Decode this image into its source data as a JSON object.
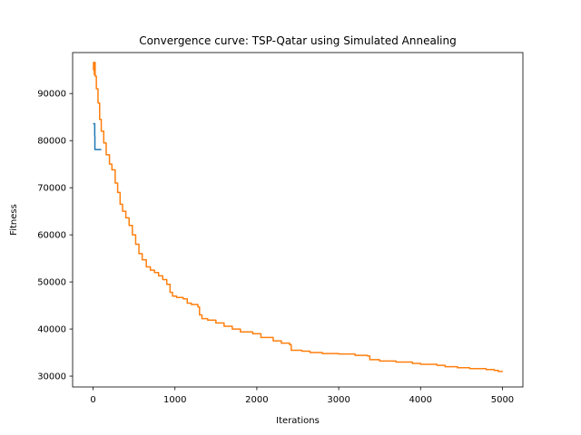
{
  "chart_data": {
    "type": "line",
    "title": "Convergence curve: TSP-Qatar using Simulated Annealing",
    "xlabel": "Iterations",
    "ylabel": "Fitness",
    "xlim": [
      -250,
      5250
    ],
    "ylim": [
      27700,
      98700
    ],
    "xticks": [
      0,
      1000,
      2000,
      3000,
      4000,
      5000
    ],
    "yticks": [
      30000,
      40000,
      50000,
      60000,
      70000,
      80000,
      90000
    ],
    "grid": false,
    "legend": "none",
    "series": [
      {
        "color": "#1f77b4",
        "step": true,
        "points": [
          [
            0,
            83600
          ],
          [
            20,
            81000
          ],
          [
            22,
            78100
          ],
          [
            100,
            78100
          ]
        ]
      },
      {
        "color": "#ff7f0e",
        "step": true,
        "points": [
          [
            0,
            95000
          ],
          [
            5,
            96600
          ],
          [
            15,
            94000
          ],
          [
            20,
            96600
          ],
          [
            25,
            93700
          ],
          [
            40,
            91000
          ],
          [
            60,
            88000
          ],
          [
            80,
            84500
          ],
          [
            100,
            82000
          ],
          [
            130,
            79500
          ],
          [
            160,
            77000
          ],
          [
            200,
            75000
          ],
          [
            230,
            73800
          ],
          [
            270,
            71000
          ],
          [
            300,
            69000
          ],
          [
            330,
            66500
          ],
          [
            360,
            65000
          ],
          [
            400,
            63600
          ],
          [
            440,
            62000
          ],
          [
            480,
            60000
          ],
          [
            520,
            58000
          ],
          [
            560,
            56000
          ],
          [
            600,
            54700
          ],
          [
            650,
            53200
          ],
          [
            700,
            52500
          ],
          [
            750,
            52000
          ],
          [
            800,
            51300
          ],
          [
            850,
            50500
          ],
          [
            900,
            49500
          ],
          [
            940,
            47800
          ],
          [
            970,
            47000
          ],
          [
            1020,
            46700
          ],
          [
            1100,
            46400
          ],
          [
            1150,
            45500
          ],
          [
            1200,
            45200
          ],
          [
            1280,
            44700
          ],
          [
            1300,
            43000
          ],
          [
            1330,
            42200
          ],
          [
            1400,
            41900
          ],
          [
            1500,
            41300
          ],
          [
            1600,
            40600
          ],
          [
            1700,
            40000
          ],
          [
            1800,
            39400
          ],
          [
            1950,
            39000
          ],
          [
            2050,
            38200
          ],
          [
            2200,
            37500
          ],
          [
            2300,
            37000
          ],
          [
            2400,
            36700
          ],
          [
            2420,
            35500
          ],
          [
            2550,
            35300
          ],
          [
            2650,
            35000
          ],
          [
            2800,
            34800
          ],
          [
            3000,
            34700
          ],
          [
            3200,
            34400
          ],
          [
            3350,
            34300
          ],
          [
            3380,
            33500
          ],
          [
            3500,
            33200
          ],
          [
            3700,
            33000
          ],
          [
            3900,
            32700
          ],
          [
            4000,
            32500
          ],
          [
            4200,
            32300
          ],
          [
            4300,
            32000
          ],
          [
            4450,
            31800
          ],
          [
            4600,
            31600
          ],
          [
            4800,
            31400
          ],
          [
            4900,
            31200
          ],
          [
            4950,
            31000
          ],
          [
            5000,
            30900
          ]
        ]
      }
    ]
  }
}
